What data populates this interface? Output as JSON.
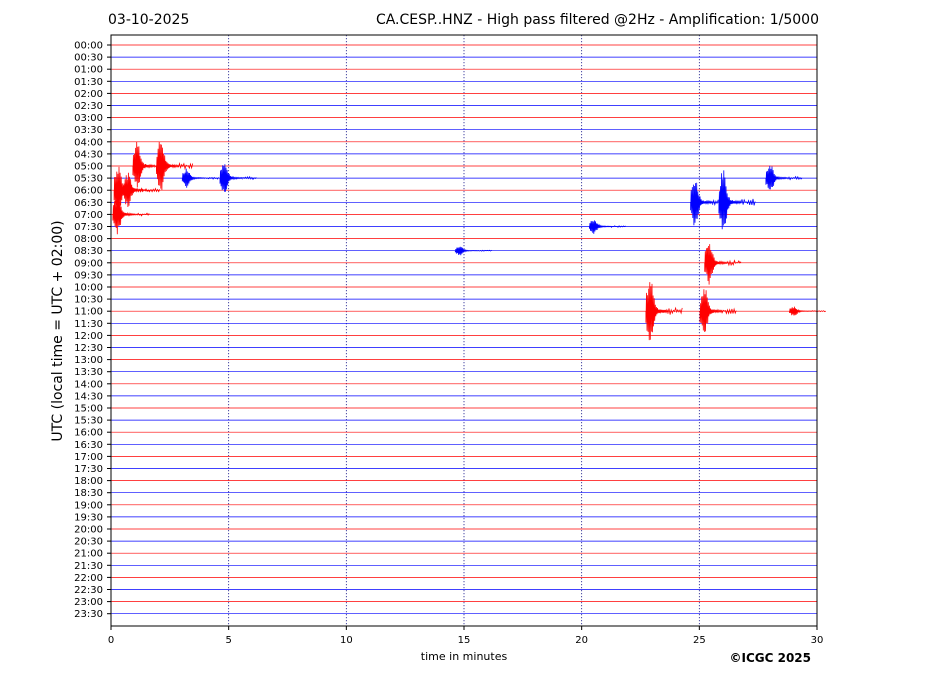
{
  "header": {
    "date": "03-10-2025",
    "title": "CA.CESP..HNZ - High pass filtered @2Hz - Amplification: 1/5000"
  },
  "credit": "©ICGC 2025",
  "chart_data": {
    "type": "line",
    "xlabel": "time in minutes",
    "ylabel": "UTC (local time = UTC + 02:00)",
    "xlim": [
      0,
      30
    ],
    "x_ticks": [
      0,
      5,
      10,
      15,
      20,
      25,
      30
    ],
    "grid": "vertical dotted lines at every 5 minutes",
    "row_labels": [
      "00:00",
      "00:30",
      "01:00",
      "01:30",
      "02:00",
      "02:30",
      "03:00",
      "03:30",
      "04:00",
      "04:30",
      "05:00",
      "05:30",
      "06:00",
      "06:30",
      "07:00",
      "07:30",
      "08:00",
      "08:30",
      "09:00",
      "09:30",
      "10:00",
      "10:30",
      "11:00",
      "11:30",
      "12:00",
      "12:30",
      "13:00",
      "13:30",
      "14:00",
      "14:30",
      "15:00",
      "15:30",
      "16:00",
      "16:30",
      "17:00",
      "17:30",
      "18:00",
      "18:30",
      "19:00",
      "19:30",
      "20:00",
      "20:30",
      "21:00",
      "21:30",
      "22:00",
      "22:30",
      "23:00",
      "23:30"
    ],
    "row_colors": [
      "#ff0000",
      "#0000ff"
    ],
    "events": [
      {
        "row": "05:00",
        "minutes": [
          1.1,
          2.1
        ],
        "amplitude": [
          1.0,
          1.1
        ]
      },
      {
        "row": "05:30",
        "minutes": [
          3.2,
          4.8
        ],
        "amplitude": [
          0.4,
          0.6
        ]
      },
      {
        "row": "05:30",
        "minutes": [
          28.0
        ],
        "amplitude": [
          0.6
        ]
      },
      {
        "row": "06:00",
        "minutes": [
          0.3,
          0.7
        ],
        "amplitude": [
          1.0,
          0.7
        ]
      },
      {
        "row": "06:30",
        "minutes": [
          24.8,
          26.0
        ],
        "amplitude": [
          1.0,
          1.3
        ]
      },
      {
        "row": "07:00",
        "minutes": [
          0.25
        ],
        "amplitude": [
          0.8
        ]
      },
      {
        "row": "07:30",
        "minutes": [
          20.5
        ],
        "amplitude": [
          0.3
        ]
      },
      {
        "row": "08:30",
        "minutes": [
          14.8
        ],
        "amplitude": [
          0.2
        ]
      },
      {
        "row": "09:00",
        "minutes": [
          25.4
        ],
        "amplitude": [
          0.9
        ]
      },
      {
        "row": "11:00",
        "minutes": [
          22.9,
          25.2,
          29.0
        ],
        "amplitude": [
          1.4,
          1.0,
          0.2
        ]
      }
    ]
  }
}
